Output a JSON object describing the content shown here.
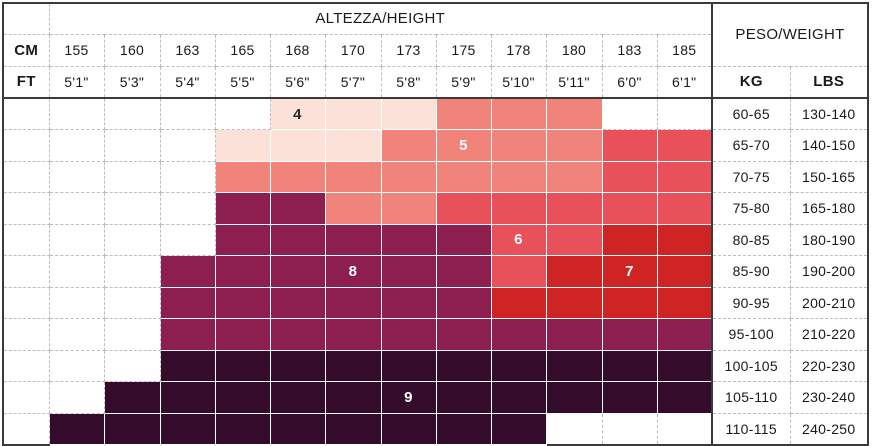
{
  "headers": {
    "height_title": "ALTEZZA/HEIGHT",
    "weight_title": "PESO/WEIGHT",
    "cm_label": "CM",
    "ft_label": "FT",
    "kg_label": "KG",
    "lbs_label": "LBS"
  },
  "cm": [
    "155",
    "160",
    "163",
    "165",
    "168",
    "170",
    "173",
    "175",
    "178",
    "180",
    "183",
    "185"
  ],
  "ft": [
    "5'1\"",
    "5'3\"",
    "5'4\"",
    "5'5\"",
    "5'6\"",
    "5'7\"",
    "5'8\"",
    "5'9\"",
    "5'10\"",
    "5'11\"",
    "6'0\"",
    "6'1\""
  ],
  "rows": [
    {
      "kg": "60-65",
      "lbs": "130-140"
    },
    {
      "kg": "65-70",
      "lbs": "140-150"
    },
    {
      "kg": "70-75",
      "lbs": "150-165"
    },
    {
      "kg": "75-80",
      "lbs": "165-180"
    },
    {
      "kg": "80-85",
      "lbs": "180-190"
    },
    {
      "kg": "85-90",
      "lbs": "190-200"
    },
    {
      "kg": "90-95",
      "lbs": "200-210"
    },
    {
      "kg": "95-100",
      "lbs": "210-220"
    },
    {
      "kg": "100-105",
      "lbs": "220-230"
    },
    {
      "kg": "105-110",
      "lbs": "230-240"
    },
    {
      "kg": "110-115",
      "lbs": "240-250"
    }
  ],
  "zone_colors": {
    "0": "#ffffff",
    "4": "#fbe1d7",
    "5": "#f0837a",
    "6": "#e8505a",
    "7": "#cf2424",
    "8": "#8c1f50",
    "9": "#350b2c"
  },
  "size_grid": [
    [
      0,
      0,
      0,
      0,
      4,
      4,
      4,
      5,
      5,
      5,
      0,
      0
    ],
    [
      0,
      0,
      0,
      4,
      4,
      4,
      5,
      5,
      5,
      5,
      6,
      6
    ],
    [
      0,
      0,
      0,
      5,
      5,
      5,
      5,
      5,
      5,
      5,
      6,
      6
    ],
    [
      0,
      0,
      0,
      8,
      8,
      5,
      5,
      6,
      6,
      6,
      6,
      6
    ],
    [
      0,
      0,
      0,
      8,
      8,
      8,
      8,
      8,
      6,
      6,
      7,
      7
    ],
    [
      0,
      0,
      8,
      8,
      8,
      8,
      8,
      8,
      6,
      7,
      7,
      7
    ],
    [
      0,
      0,
      8,
      8,
      8,
      8,
      8,
      8,
      7,
      7,
      7,
      7
    ],
    [
      0,
      0,
      8,
      8,
      8,
      8,
      8,
      8,
      8,
      8,
      8,
      8
    ],
    [
      0,
      0,
      9,
      9,
      9,
      9,
      9,
      9,
      9,
      9,
      9,
      9
    ],
    [
      0,
      9,
      9,
      9,
      9,
      9,
      9,
      9,
      9,
      9,
      9,
      9
    ],
    [
      9,
      9,
      9,
      9,
      9,
      9,
      9,
      9,
      9,
      0,
      0,
      0
    ]
  ],
  "zone_labels": [
    {
      "text": "4",
      "row": 0,
      "col": 4
    },
    {
      "text": "5",
      "row": 1,
      "col": 7
    },
    {
      "text": "6",
      "row": 4,
      "col": 8
    },
    {
      "text": "7",
      "row": 5,
      "col": 10
    },
    {
      "text": "8",
      "row": 5,
      "col": 5
    },
    {
      "text": "9",
      "row": 9,
      "col": 6
    }
  ]
}
